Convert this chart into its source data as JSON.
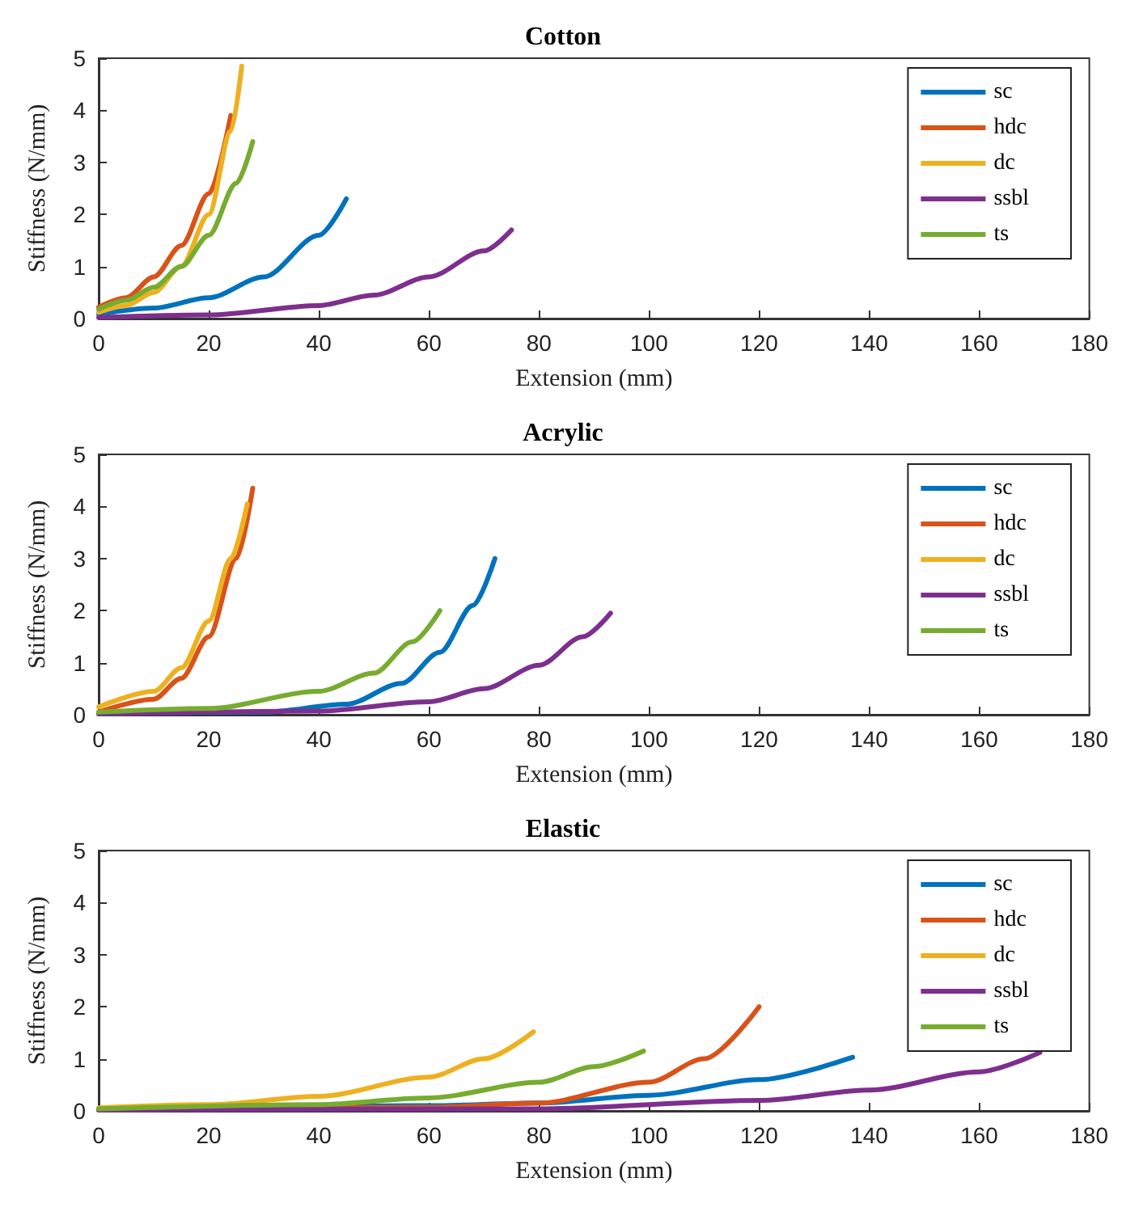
{
  "chart_data": [
    {
      "type": "line",
      "title": "Cotton",
      "xlabel": "Extension (mm)",
      "ylabel": "Stiffness (N/mm)",
      "xlim": [
        0,
        180
      ],
      "xticks": [
        0,
        20,
        40,
        60,
        80,
        100,
        120,
        140,
        160,
        180
      ],
      "ylim": [
        0,
        5
      ],
      "yticks": [
        0,
        1,
        2,
        3,
        4,
        5
      ],
      "grid": false,
      "legend": "top right",
      "marker": "none",
      "line_style": "solid",
      "series": [
        {
          "name": "sc",
          "color": "#0072bd",
          "x": [
            0,
            10,
            20,
            30,
            40,
            45
          ],
          "values": [
            0.08,
            0.2,
            0.4,
            0.8,
            1.6,
            2.3
          ]
        },
        {
          "name": "hdc",
          "color": "#d95319",
          "x": [
            0,
            5,
            10,
            15,
            20,
            24
          ],
          "values": [
            0.22,
            0.4,
            0.8,
            1.4,
            2.4,
            3.9
          ]
        },
        {
          "name": "dc",
          "color": "#edb120",
          "x": [
            0,
            5,
            10,
            15,
            20,
            24,
            26
          ],
          "values": [
            0.12,
            0.25,
            0.5,
            1.0,
            2.0,
            3.6,
            4.85
          ]
        },
        {
          "name": "ssbl",
          "color": "#7e2f8e",
          "x": [
            0,
            20,
            40,
            50,
            60,
            70,
            75
          ],
          "values": [
            0.02,
            0.07,
            0.25,
            0.45,
            0.8,
            1.3,
            1.7
          ]
        },
        {
          "name": "ts",
          "color": "#77ac30",
          "x": [
            0,
            5,
            10,
            15,
            20,
            25,
            28
          ],
          "values": [
            0.18,
            0.35,
            0.6,
            1.0,
            1.6,
            2.6,
            3.4
          ]
        }
      ]
    },
    {
      "type": "line",
      "title": "Acrylic",
      "xlabel": "Extension (mm)",
      "ylabel": "Stiffness (N/mm)",
      "xlim": [
        0,
        180
      ],
      "xticks": [
        0,
        20,
        40,
        60,
        80,
        100,
        120,
        140,
        160,
        180
      ],
      "ylim": [
        0,
        5
      ],
      "yticks": [
        0,
        1,
        2,
        3,
        4,
        5
      ],
      "grid": false,
      "legend": "top right",
      "marker": "none",
      "line_style": "solid",
      "series": [
        {
          "name": "sc",
          "color": "#0072bd",
          "x": [
            0,
            30,
            45,
            55,
            62,
            68,
            72
          ],
          "values": [
            0.02,
            0.05,
            0.2,
            0.6,
            1.2,
            2.1,
            3.0
          ]
        },
        {
          "name": "hdc",
          "color": "#d95319",
          "x": [
            0,
            10,
            15,
            20,
            25,
            28
          ],
          "values": [
            0.05,
            0.3,
            0.7,
            1.5,
            3.0,
            4.35
          ]
        },
        {
          "name": "dc",
          "color": "#edb120",
          "x": [
            0,
            10,
            15,
            20,
            24,
            27
          ],
          "values": [
            0.15,
            0.45,
            0.9,
            1.8,
            3.0,
            4.05
          ]
        },
        {
          "name": "ssbl",
          "color": "#7e2f8e",
          "x": [
            0,
            40,
            60,
            70,
            80,
            88,
            93
          ],
          "values": [
            0.02,
            0.07,
            0.25,
            0.5,
            0.95,
            1.5,
            1.95
          ]
        },
        {
          "name": "ts",
          "color": "#77ac30",
          "x": [
            0,
            20,
            40,
            50,
            57,
            62
          ],
          "values": [
            0.05,
            0.12,
            0.45,
            0.8,
            1.4,
            2.0
          ]
        }
      ]
    },
    {
      "type": "line",
      "title": "Elastic",
      "xlabel": "Extension (mm)",
      "ylabel": "Stiffness (N/mm)",
      "xlim": [
        0,
        180
      ],
      "xticks": [
        0,
        20,
        40,
        60,
        80,
        100,
        120,
        140,
        160,
        180
      ],
      "ylim": [
        0,
        5
      ],
      "yticks": [
        0,
        1,
        2,
        3,
        4,
        5
      ],
      "grid": false,
      "legend": "top right",
      "marker": "none",
      "line_style": "solid",
      "series": [
        {
          "name": "sc",
          "color": "#0072bd",
          "x": [
            0,
            60,
            80,
            100,
            120,
            137
          ],
          "values": [
            0.02,
            0.1,
            0.15,
            0.3,
            0.6,
            1.03
          ]
        },
        {
          "name": "hdc",
          "color": "#d95319",
          "x": [
            0,
            60,
            80,
            100,
            110,
            120
          ],
          "values": [
            0.02,
            0.07,
            0.15,
            0.55,
            1.0,
            2.0
          ]
        },
        {
          "name": "dc",
          "color": "#edb120",
          "x": [
            0,
            20,
            40,
            60,
            70,
            79
          ],
          "values": [
            0.06,
            0.12,
            0.28,
            0.65,
            1.0,
            1.52
          ]
        },
        {
          "name": "ssbl",
          "color": "#7e2f8e",
          "x": [
            0,
            80,
            120,
            140,
            160,
            171
          ],
          "values": [
            0.02,
            0.04,
            0.2,
            0.4,
            0.75,
            1.12
          ]
        },
        {
          "name": "ts",
          "color": "#77ac30",
          "x": [
            0,
            40,
            60,
            80,
            90,
            99
          ],
          "values": [
            0.04,
            0.12,
            0.25,
            0.55,
            0.85,
            1.15
          ]
        }
      ]
    }
  ]
}
